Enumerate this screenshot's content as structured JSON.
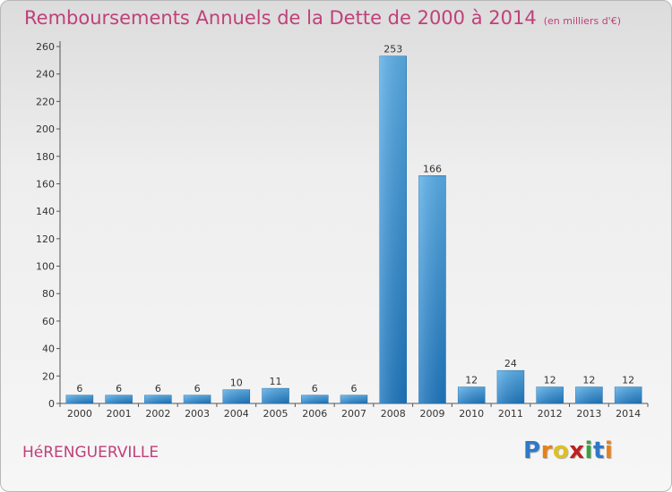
{
  "title": "Remboursements Annuels de la Dette de 2000 à 2014",
  "title_unit": "(en milliers d'€)",
  "commune": "HéRENGUERVILLE",
  "logo": {
    "letters": [
      "P",
      "r",
      "o",
      "x",
      "i",
      "t",
      "i"
    ],
    "colors": [
      "#2f78c8",
      "#e8801a",
      "#e0c020",
      "#c02020",
      "#3aa040",
      "#2f78c8",
      "#e8801a"
    ]
  },
  "colors": {
    "title": "#c0407a",
    "bar_dark": "#1f78c0",
    "bar_light": "#5aaee8"
  },
  "chart_data": {
    "type": "bar",
    "title": "Remboursements Annuels de la Dette de 2000 à 2014",
    "xlabel": "",
    "ylabel": "",
    "categories": [
      "2000",
      "2001",
      "2002",
      "2003",
      "2004",
      "2005",
      "2006",
      "2007",
      "2008",
      "2009",
      "2010",
      "2011",
      "2012",
      "2013",
      "2014"
    ],
    "values": [
      6,
      6,
      6,
      6,
      10,
      11,
      6,
      6,
      253,
      166,
      12,
      24,
      12,
      12,
      12
    ],
    "ylim": [
      0,
      260
    ],
    "yticks": [
      0,
      20,
      40,
      60,
      80,
      100,
      120,
      140,
      160,
      180,
      200,
      220,
      240,
      260
    ],
    "grid": false,
    "legend": "none"
  }
}
